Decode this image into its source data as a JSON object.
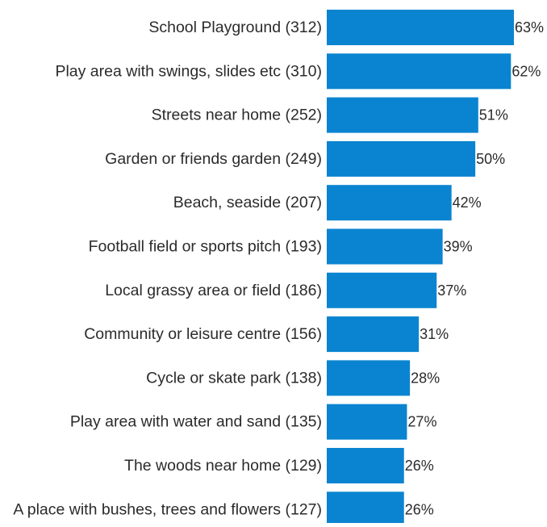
{
  "chart_data": {
    "type": "bar",
    "orientation": "horizontal",
    "title": "",
    "xlabel": "",
    "ylabel": "",
    "grid": false,
    "legend": "none",
    "bar_color": "#0a84d0",
    "categories": [
      "School Playground (312)",
      "Play area with swings, slides etc (310)",
      "Streets near home (252)",
      "Garden or friends garden (249)",
      "Beach, seaside (207)",
      "Football field or sports pitch (193)",
      "Local grassy area or field (186)",
      "Community or leisure centre (156)",
      "Cycle or skate park (138)",
      "Play area with water and sand (135)",
      "The woods near home (129)",
      "A place with bushes, trees and flowers (127)"
    ],
    "values": [
      63,
      62,
      51,
      50,
      42,
      39,
      37,
      31,
      28,
      27,
      26,
      26
    ],
    "value_labels": [
      "63%",
      "62%",
      "51%",
      "50%",
      "42%",
      "39%",
      "37%",
      "31%",
      "28%",
      "27%",
      "26%",
      "26%"
    ],
    "xlim": [
      0,
      63
    ]
  }
}
